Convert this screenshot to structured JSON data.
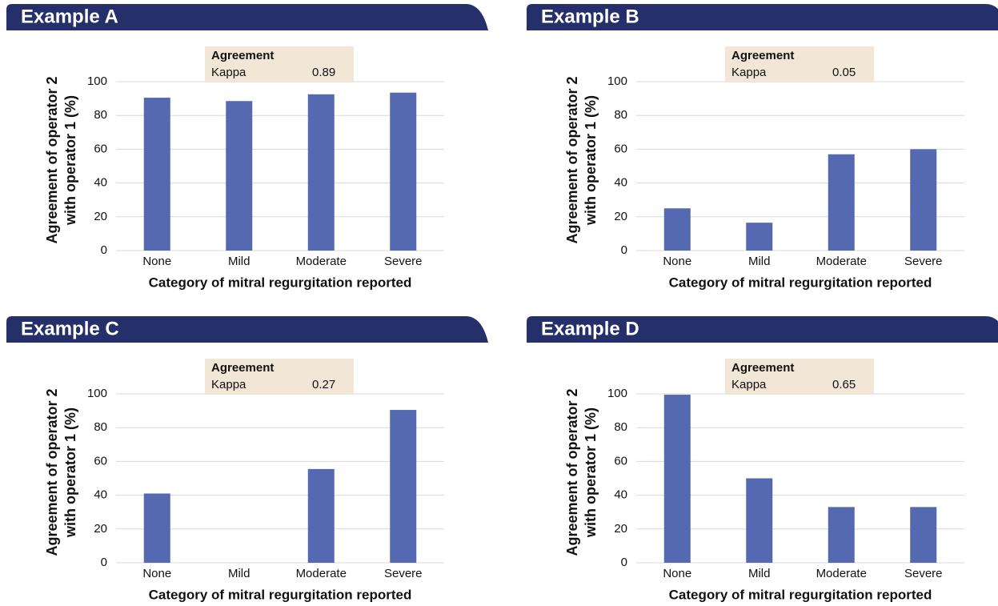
{
  "chart_data": [
    {
      "type": "bar",
      "title": "Example A",
      "categories": [
        "None",
        "Mild",
        "Moderate",
        "Severe"
      ],
      "values": [
        90.5,
        88.5,
        92.5,
        93.5
      ],
      "color": "#5469b0",
      "ylim": [
        0,
        100
      ],
      "yticks": [
        0,
        20,
        40,
        60,
        80,
        100
      ],
      "grid": true,
      "ylabel": [
        "Agreement of operator 2",
        "with operator 1 (%)"
      ],
      "xlabel": "Category of mitral regurgitation reported",
      "annotation": {
        "title": "Agreement",
        "label": "Kappa",
        "value": 0.89
      }
    },
    {
      "type": "bar",
      "title": "Example B",
      "categories": [
        "None",
        "Mild",
        "Moderate",
        "Severe"
      ],
      "values": [
        25,
        16.5,
        57,
        60
      ],
      "color": "#5469b0",
      "ylim": [
        0,
        100
      ],
      "yticks": [
        0,
        20,
        40,
        60,
        80,
        100
      ],
      "grid": true,
      "ylabel": [
        "Agreement of operator 2",
        "with operator 1 (%)"
      ],
      "xlabel": "Category of mitral regurgitation reported",
      "annotation": {
        "title": "Agreement",
        "label": "Kappa",
        "value": 0.05
      }
    },
    {
      "type": "bar",
      "title": "Example C",
      "categories": [
        "None",
        "Mild",
        "Moderate",
        "Severe"
      ],
      "values": [
        41,
        0,
        55.5,
        90.5
      ],
      "color": "#5469b0",
      "ylim": [
        0,
        100
      ],
      "yticks": [
        0,
        20,
        40,
        60,
        80,
        100
      ],
      "grid": true,
      "ylabel": [
        "Agreement of operator 2",
        "with operator 1 (%)"
      ],
      "xlabel": "Category of mitral regurgitation reported",
      "annotation": {
        "title": "Agreement",
        "label": "Kappa",
        "value": 0.27
      }
    },
    {
      "type": "bar",
      "title": "Example D",
      "categories": [
        "None",
        "Mild",
        "Moderate",
        "Severe"
      ],
      "values": [
        99.5,
        50,
        33,
        33
      ],
      "color": "#5469b0",
      "ylim": [
        0,
        100
      ],
      "yticks": [
        0,
        20,
        40,
        60,
        80,
        100
      ],
      "grid": true,
      "ylabel": [
        "Agreement of operator 2",
        "with operator 1 (%)"
      ],
      "xlabel": "Category of mitral regurgitation reported",
      "annotation": {
        "title": "Agreement",
        "label": "Kappa",
        "value": 0.65
      }
    }
  ]
}
